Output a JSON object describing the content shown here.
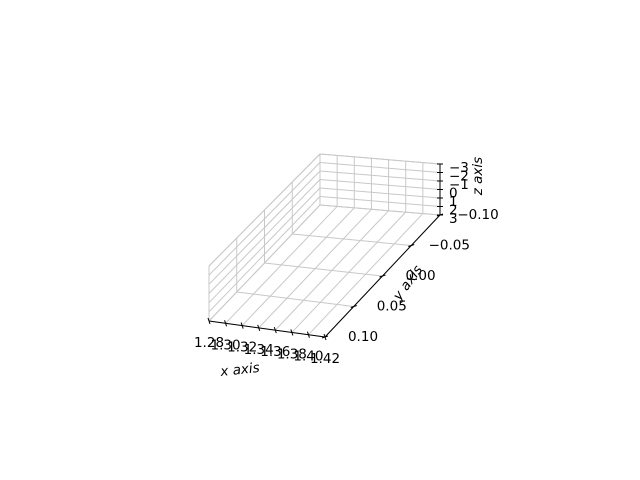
{
  "chart_data": {
    "type": "3d-wireframe",
    "xlabel": "x axis",
    "ylabel": "y axis",
    "zlabel": "z axis",
    "x_ticks": [
      "1.28",
      "1.30",
      "1.32",
      "1.34",
      "1.36",
      "1.38",
      "1.40",
      "1.42"
    ],
    "y_ticks": [
      "0.10",
      "0.05",
      "0.00",
      "−0.05",
      "−0.10"
    ],
    "z_ticks": [
      "−3",
      "−2",
      "−1",
      "0",
      "1",
      "2",
      "3"
    ],
    "grid": true,
    "pane_color": "#ffffff",
    "grid_color": "#c8c8c8",
    "axis_color": "#000000"
  }
}
